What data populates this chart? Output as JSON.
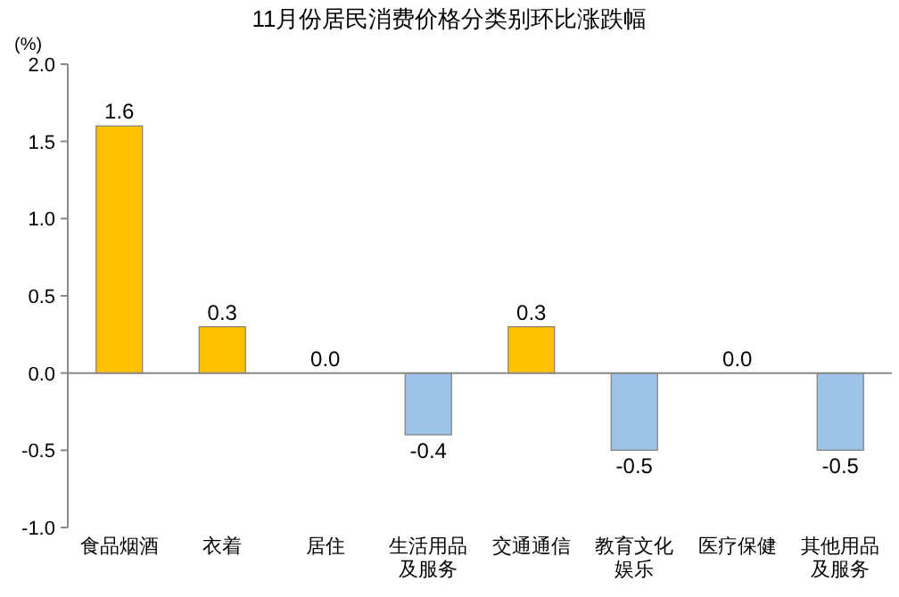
{
  "chart_data": {
    "type": "bar",
    "title": "11月份居民消费价格分类别环比涨跌幅",
    "ylabel": "(%)",
    "categories": [
      "食品烟酒",
      "衣着",
      "居住",
      "生活用品及服务",
      "交通通信",
      "教育文化娱乐",
      "医疗保健",
      "其他用品及服务"
    ],
    "values": [
      1.6,
      0.3,
      0.0,
      -0.4,
      0.3,
      -0.5,
      0.0,
      -0.5
    ],
    "colors": [
      "#ffc000",
      "#ffc000",
      "#ffc000",
      "#9dc3e6",
      "#ffc000",
      "#9dc3e6",
      "#ffc000",
      "#9dc3e6"
    ],
    "value_labels": [
      "1.6",
      "0.3",
      "0.0",
      "-0.4",
      "0.3",
      "-0.5",
      "0.0",
      "-0.5"
    ],
    "yticks": [
      {
        "value": -1.0,
        "label": "-1.0"
      },
      {
        "value": -0.5,
        "label": "-0.5"
      },
      {
        "value": 0.0,
        "label": "0.0"
      },
      {
        "value": 0.5,
        "label": "0.5"
      },
      {
        "value": 1.0,
        "label": "1.0"
      },
      {
        "value": 1.5,
        "label": "1.5"
      },
      {
        "value": 2.0,
        "label": "2.0"
      }
    ],
    "ylim": [
      -1.0,
      2.0
    ]
  }
}
